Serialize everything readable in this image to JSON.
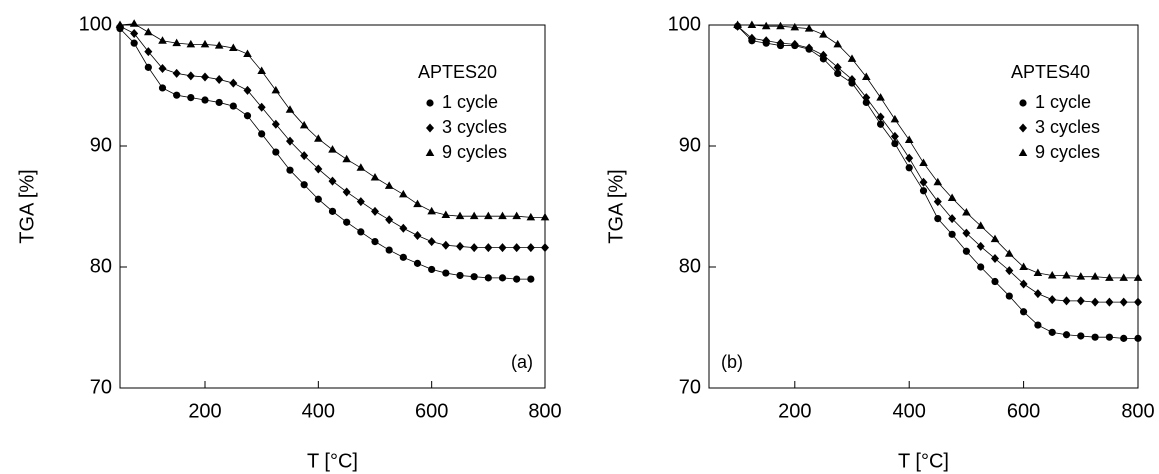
{
  "chart_data": [
    {
      "type": "line",
      "panel_label": "(a)",
      "panel_label_corner": "bottom-right",
      "legend_title": "APTES20",
      "xlabel": "T [°C]",
      "ylabel": "TGA [%]",
      "xlim": [
        50,
        800
      ],
      "ylim": [
        70,
        100
      ],
      "xticks": [
        200,
        400,
        600,
        800
      ],
      "yticks": [
        70,
        80,
        90,
        100
      ],
      "color": "#000000",
      "x": [
        50,
        75,
        100,
        125,
        150,
        175,
        200,
        225,
        250,
        275,
        300,
        325,
        350,
        375,
        400,
        425,
        450,
        475,
        500,
        525,
        550,
        575,
        600,
        625,
        650,
        675,
        700,
        725,
        750,
        775,
        800
      ],
      "series": [
        {
          "name": "1 cycle",
          "marker": "circle",
          "values": [
            99.7,
            98.5,
            96.5,
            94.8,
            94.2,
            94.0,
            93.8,
            93.6,
            93.3,
            92.5,
            91.0,
            89.5,
            88.0,
            86.8,
            85.6,
            84.6,
            83.7,
            82.9,
            82.1,
            81.4,
            80.8,
            80.3,
            79.8,
            79.5,
            79.3,
            79.2,
            79.1,
            79.1,
            79.0,
            79.0,
            null
          ]
        },
        {
          "name": "3 cycles",
          "marker": "diamond",
          "values": [
            99.9,
            99.3,
            97.8,
            96.4,
            96.0,
            95.8,
            95.7,
            95.5,
            95.2,
            94.6,
            93.2,
            91.8,
            90.4,
            89.2,
            88.1,
            87.1,
            86.2,
            85.4,
            84.6,
            83.9,
            83.2,
            82.6,
            82.1,
            81.8,
            81.7,
            81.6,
            81.6,
            81.6,
            81.6,
            81.6,
            81.6
          ]
        },
        {
          "name": "9 cycles",
          "marker": "triangle",
          "values": [
            100,
            100.1,
            99.4,
            98.7,
            98.5,
            98.4,
            98.4,
            98.3,
            98.1,
            97.6,
            96.2,
            94.6,
            93.0,
            91.7,
            90.6,
            89.7,
            88.9,
            88.2,
            87.4,
            86.7,
            86.0,
            85.2,
            84.6,
            84.3,
            84.2,
            84.2,
            84.2,
            84.2,
            84.2,
            84.1,
            84.1
          ]
        }
      ]
    },
    {
      "type": "line",
      "panel_label": "(b)",
      "panel_label_corner": "bottom-left",
      "legend_title": "APTES40",
      "xlabel": "T [°C]",
      "ylabel": "TGA [%]",
      "xlim": [
        50,
        800
      ],
      "ylim": [
        70,
        100
      ],
      "xticks": [
        200,
        400,
        600,
        800
      ],
      "yticks": [
        70,
        80,
        90,
        100
      ],
      "color": "#000000",
      "x": [
        100,
        125,
        150,
        175,
        200,
        225,
        250,
        275,
        300,
        325,
        350,
        375,
        400,
        425,
        450,
        475,
        500,
        525,
        550,
        575,
        600,
        625,
        650,
        675,
        700,
        725,
        750,
        775,
        800
      ],
      "series": [
        {
          "name": "1 cycle",
          "marker": "circle",
          "values": [
            99.9,
            98.7,
            98.5,
            98.3,
            98.3,
            98.0,
            97.2,
            96.0,
            95.2,
            93.6,
            91.8,
            90.2,
            88.2,
            86.3,
            84.0,
            82.7,
            81.3,
            80.0,
            78.8,
            77.6,
            76.3,
            75.2,
            74.6,
            74.4,
            74.3,
            74.2,
            74.2,
            74.1,
            74.1
          ]
        },
        {
          "name": "3 cycles",
          "marker": "diamond",
          "values": [
            99.9,
            98.9,
            98.7,
            98.5,
            98.4,
            98.1,
            97.5,
            96.5,
            95.5,
            94.0,
            92.4,
            90.8,
            89.0,
            87.0,
            85.4,
            84.0,
            82.8,
            81.7,
            80.7,
            79.7,
            78.6,
            77.8,
            77.3,
            77.2,
            77.2,
            77.1,
            77.1,
            77.1,
            77.1
          ]
        },
        {
          "name": "9 cycles",
          "marker": "triangle",
          "values": [
            100,
            100,
            99.9,
            99.9,
            99.8,
            99.7,
            99.2,
            98.4,
            97.2,
            95.7,
            94.0,
            92.2,
            90.5,
            88.6,
            87.0,
            85.7,
            84.5,
            83.4,
            82.3,
            81.1,
            80.0,
            79.5,
            79.3,
            79.3,
            79.2,
            79.2,
            79.1,
            79.1,
            79.1
          ]
        }
      ]
    }
  ]
}
